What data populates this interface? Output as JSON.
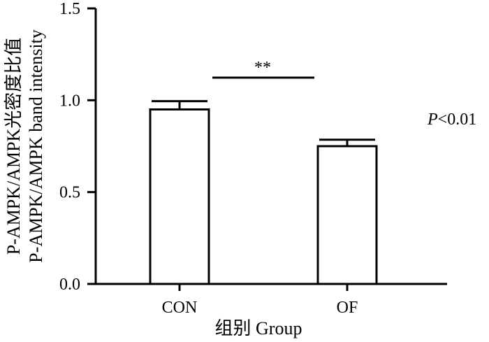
{
  "chart_data": {
    "type": "bar",
    "categories": [
      "CON",
      "OF"
    ],
    "values": [
      0.95,
      0.75
    ],
    "errors": [
      0.045,
      0.035
    ],
    "ylim": [
      0,
      1.5
    ],
    "yticks": [
      "0.0",
      "0.5",
      "1.0",
      "1.5"
    ],
    "ylabel_line1": "P-AMPK/AMPK光密度比值",
    "ylabel_line2": "P-AMPK/AMPK band intensity",
    "xlabel": "组别  Group",
    "significance": "**",
    "p_value_italic": "P",
    "p_value_rest": "<0.01",
    "bar_fill": "#ffffff",
    "bar_stroke": "#000000"
  }
}
